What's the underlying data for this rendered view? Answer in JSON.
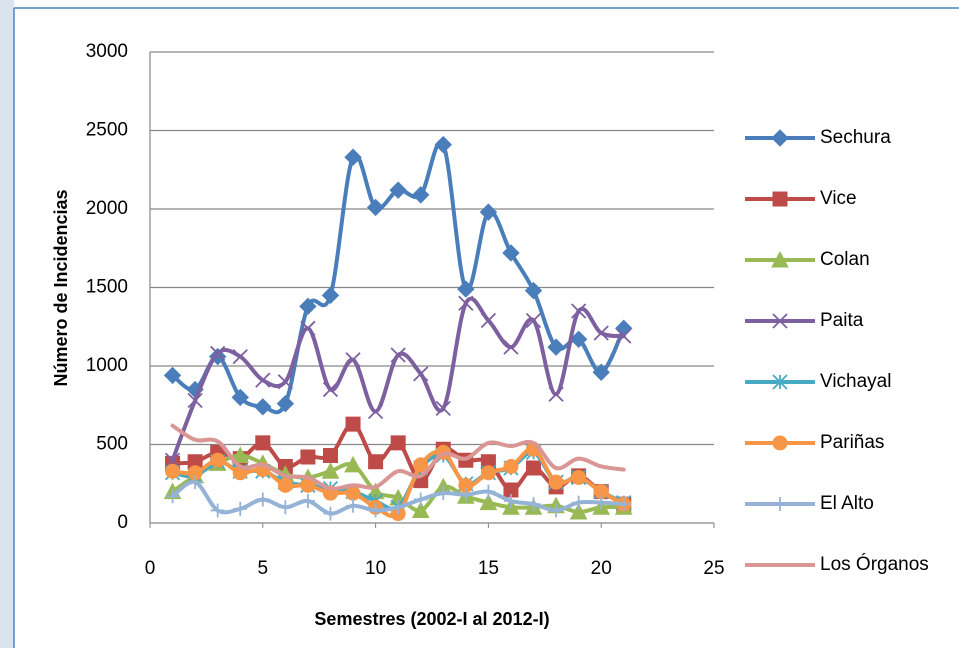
{
  "chart_data": {
    "type": "line",
    "x_label": "Semestres (2002-I al 2012-I)",
    "y_label": "Número de Incidencias",
    "x": [
      1,
      2,
      3,
      4,
      5,
      6,
      7,
      8,
      9,
      10,
      11,
      12,
      13,
      14,
      15,
      16,
      17,
      18,
      19,
      20,
      21
    ],
    "xlim": [
      0,
      25
    ],
    "xticks": [
      0,
      5,
      10,
      15,
      20,
      25
    ],
    "ylim": [
      0,
      3000
    ],
    "yticks": [
      0,
      500,
      1000,
      1500,
      2000,
      2500,
      3000
    ],
    "grid": true,
    "smooth": true,
    "legend": "right",
    "series": [
      {
        "name": "Sechura",
        "color": "#4a7ebb",
        "marker": "diamond",
        "values": [
          940,
          850,
          1060,
          800,
          740,
          760,
          1380,
          1450,
          2330,
          2010,
          2120,
          2090,
          2410,
          1490,
          1980,
          1720,
          1480,
          1120,
          1170,
          960,
          1240
        ]
      },
      {
        "name": "Vice",
        "color": "#be4b48",
        "marker": "square",
        "values": [
          380,
          390,
          450,
          410,
          510,
          360,
          420,
          430,
          630,
          390,
          510,
          270,
          470,
          400,
          390,
          210,
          350,
          230,
          300,
          200,
          120
        ]
      },
      {
        "name": "Colan",
        "color": "#98b954",
        "marker": "triangle",
        "values": [
          200,
          300,
          380,
          430,
          380,
          310,
          290,
          330,
          370,
          200,
          160,
          80,
          230,
          170,
          130,
          100,
          100,
          110,
          70,
          100,
          100
        ]
      },
      {
        "name": "Paita",
        "color": "#7d60a0",
        "marker": "x",
        "values": [
          400,
          780,
          1080,
          1060,
          910,
          900,
          1240,
          850,
          1040,
          710,
          1070,
          950,
          730,
          1400,
          1290,
          1120,
          1290,
          820,
          1350,
          1210,
          1190
        ]
      },
      {
        "name": "Vichayal",
        "color": "#46aac5",
        "marker": "star",
        "values": [
          320,
          300,
          390,
          330,
          330,
          260,
          240,
          220,
          200,
          140,
          100,
          350,
          430,
          250,
          320,
          350,
          450,
          260,
          290,
          200,
          130
        ]
      },
      {
        "name": "Pariñas",
        "color": "#f79646",
        "marker": "circle",
        "values": [
          330,
          320,
          400,
          320,
          340,
          240,
          240,
          190,
          190,
          100,
          60,
          370,
          450,
          240,
          320,
          360,
          470,
          260,
          290,
          200,
          120
        ]
      },
      {
        "name": "El Alto",
        "color": "#95b3d7",
        "marker": "plus",
        "values": [
          170,
          260,
          80,
          90,
          150,
          100,
          140,
          60,
          110,
          80,
          100,
          150,
          190,
          180,
          200,
          140,
          120,
          80,
          130,
          130,
          120
        ]
      },
      {
        "name": "Los Órganos",
        "color": "#d99694",
        "marker": "none",
        "values": [
          620,
          530,
          520,
          360,
          370,
          300,
          290,
          220,
          240,
          230,
          330,
          300,
          440,
          410,
          510,
          490,
          510,
          350,
          410,
          360,
          340
        ]
      }
    ]
  }
}
